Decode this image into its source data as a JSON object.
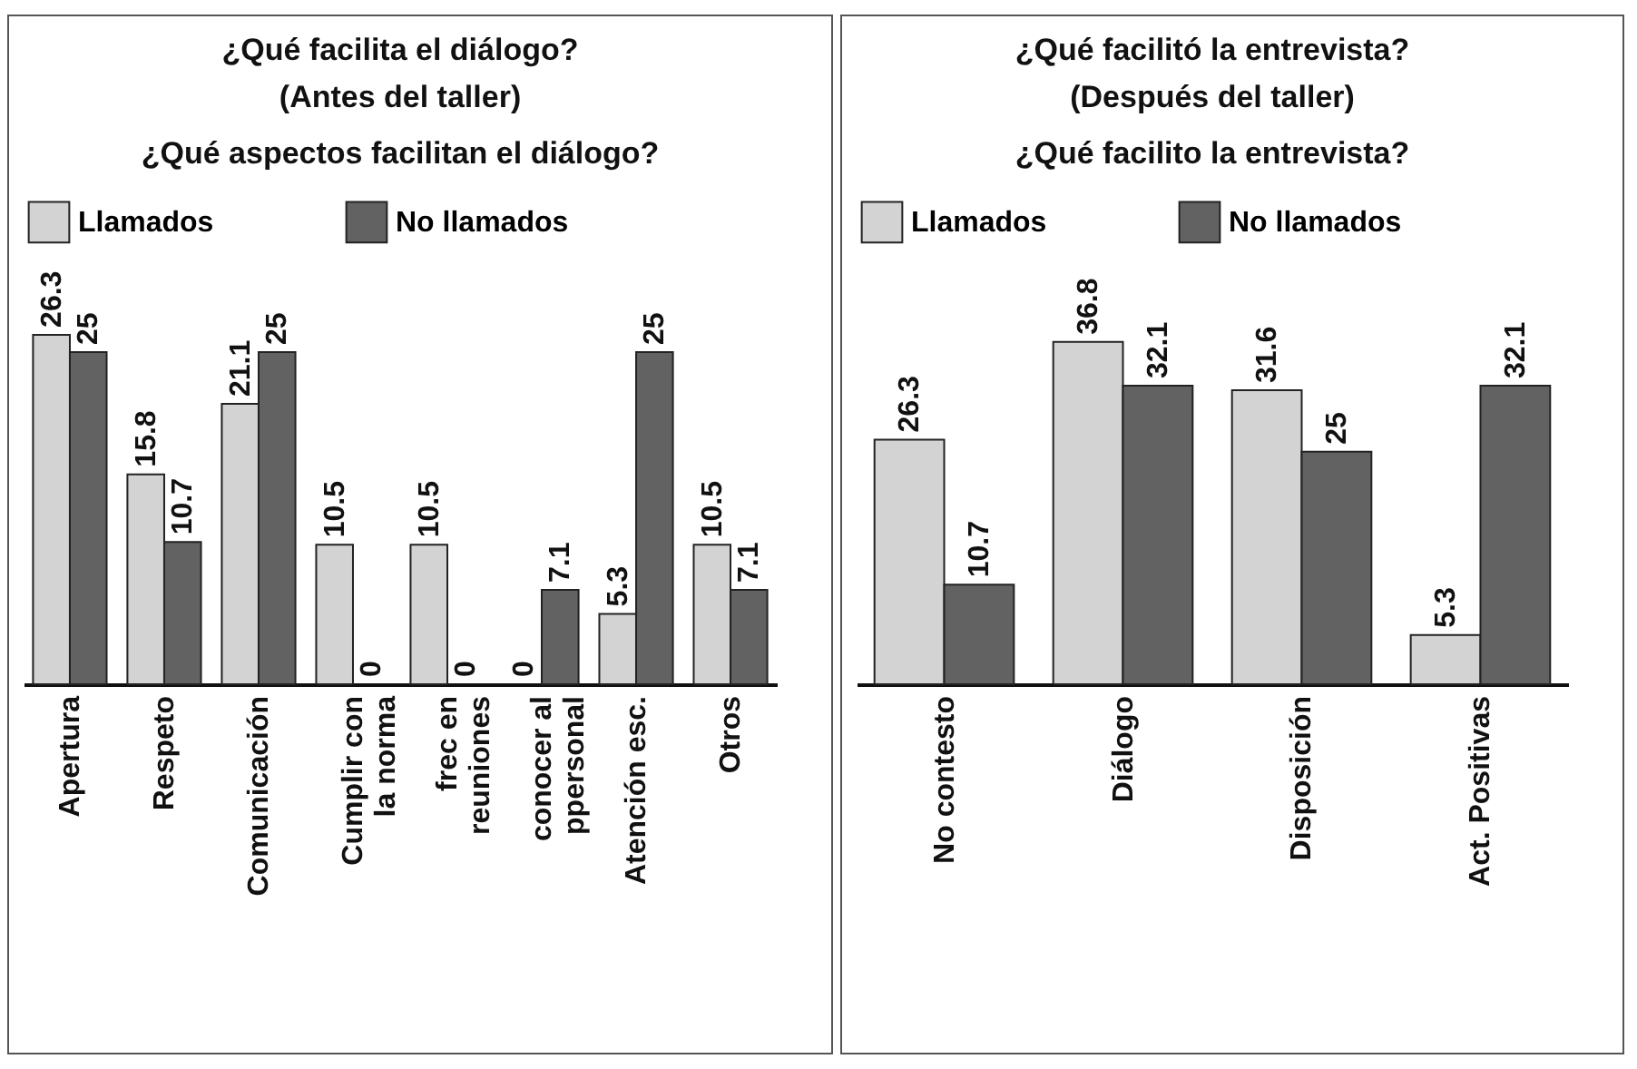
{
  "chart_data": [
    {
      "type": "bar",
      "title": "¿Qué facilita el diálogo?",
      "subtitle": "(Antes del taller)",
      "annotations": [
        "¿Qué aspectos facilitan el diálogo?"
      ],
      "categories": [
        "Apertura",
        "Respeto",
        "Comunicación",
        "Cumplir con la norma",
        "frec en reuniones",
        "conocer al ppersonal",
        "Atención esc.",
        "Otros"
      ],
      "series": [
        {
          "name": "Llamados",
          "color": "#d3d3d3",
          "values": [
            26.3,
            15.8,
            21.1,
            10.5,
            10.5,
            0,
            5.3,
            10.5
          ]
        },
        {
          "name": "No llamados",
          "color": "#626262",
          "values": [
            25,
            10.7,
            25,
            0,
            0,
            7.1,
            25,
            7.1
          ]
        }
      ],
      "data_labels": true,
      "legend": "top"
    },
    {
      "type": "bar",
      "title": "¿Qué facilitó la entrevista?",
      "subtitle": "(Después del taller)",
      "annotations": [
        "¿Qué facilito la entrevista?"
      ],
      "categories": [
        "No contesto",
        "Diálogo",
        "Disposición",
        "Act. Positivas"
      ],
      "series": [
        {
          "name": "Llamados",
          "color": "#d3d3d3",
          "values": [
            26.3,
            36.8,
            31.6,
            5.3
          ]
        },
        {
          "name": "No llamados",
          "color": "#626262",
          "values": [
            10.7,
            32.1,
            25,
            32.1
          ]
        }
      ],
      "data_labels": true,
      "legend": "top"
    }
  ]
}
